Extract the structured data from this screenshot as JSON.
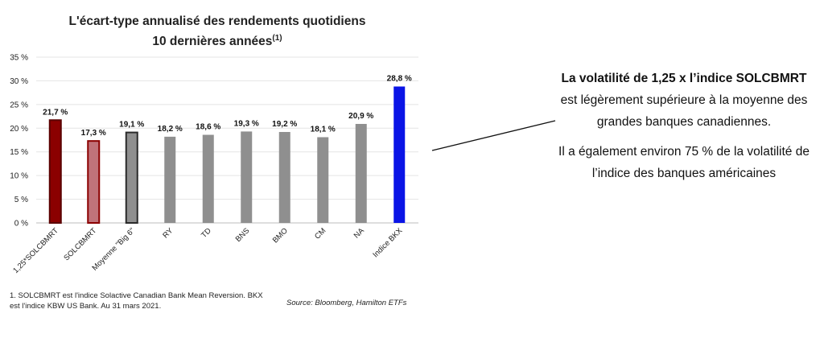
{
  "title_line1": "L'écart-type annualisé des rendements quotidiens",
  "title_line2": "10 dernières années",
  "title_note": "(1)",
  "footnote": "1. SOLCBMRT est l'indice Solactive Canadian Bank Mean Reversion. BKX est l'indice KBW US Bank. Au 31 mars 2021.",
  "source": "Source: Bloomberg, Hamilton ETFs",
  "annotation": {
    "p1_bold": "La volatilité de 1,25 x l’indice SOLCBMRT",
    "p1_rest": "est légèrement supérieure à la moyenne des grandes banques canadiennes.",
    "p2": "Il a également environ 75 % de la volatilité de l’indice des banques américaines"
  },
  "chart_data": {
    "type": "bar",
    "categories": [
      "1,25*SOLCBMRT",
      "SOLCBMRT",
      "Moyenne \"Big 6\"",
      "RY",
      "TD",
      "BNS",
      "BMO",
      "CM",
      "NA",
      "Indice BKX"
    ],
    "values": [
      21.7,
      17.3,
      19.1,
      18.2,
      18.6,
      19.3,
      19.2,
      18.1,
      20.9,
      28.8
    ],
    "value_labels": [
      "21,7 %",
      "17,3 %",
      "19,1 %",
      "18,2 %",
      "18,6 %",
      "19,3 %",
      "19,2 %",
      "18,1 %",
      "20,9 %",
      "28,8 %"
    ],
    "y_ticks": [
      0,
      5,
      10,
      15,
      20,
      25,
      30,
      35
    ],
    "y_tick_labels": [
      "0 %",
      "5 %",
      "10 %",
      "15 %",
      "20 %",
      "25 %",
      "30 %",
      "35 %"
    ],
    "ylim": [
      0,
      35
    ],
    "grid": true,
    "bar_styles": [
      {
        "fill": "#8b0000",
        "stroke": "#5a0000"
      },
      {
        "fill": "#c0737a",
        "stroke": "#8b0000"
      },
      {
        "fill": "#8f8f8f",
        "stroke": "#2a2a2a"
      },
      {
        "fill": "#8f8f8f",
        "stroke": "none"
      },
      {
        "fill": "#8f8f8f",
        "stroke": "none"
      },
      {
        "fill": "#8f8f8f",
        "stroke": "none"
      },
      {
        "fill": "#8f8f8f",
        "stroke": "none"
      },
      {
        "fill": "#8f8f8f",
        "stroke": "none"
      },
      {
        "fill": "#8f8f8f",
        "stroke": "none"
      },
      {
        "fill": "#0a14e6",
        "stroke": "none"
      }
    ]
  }
}
